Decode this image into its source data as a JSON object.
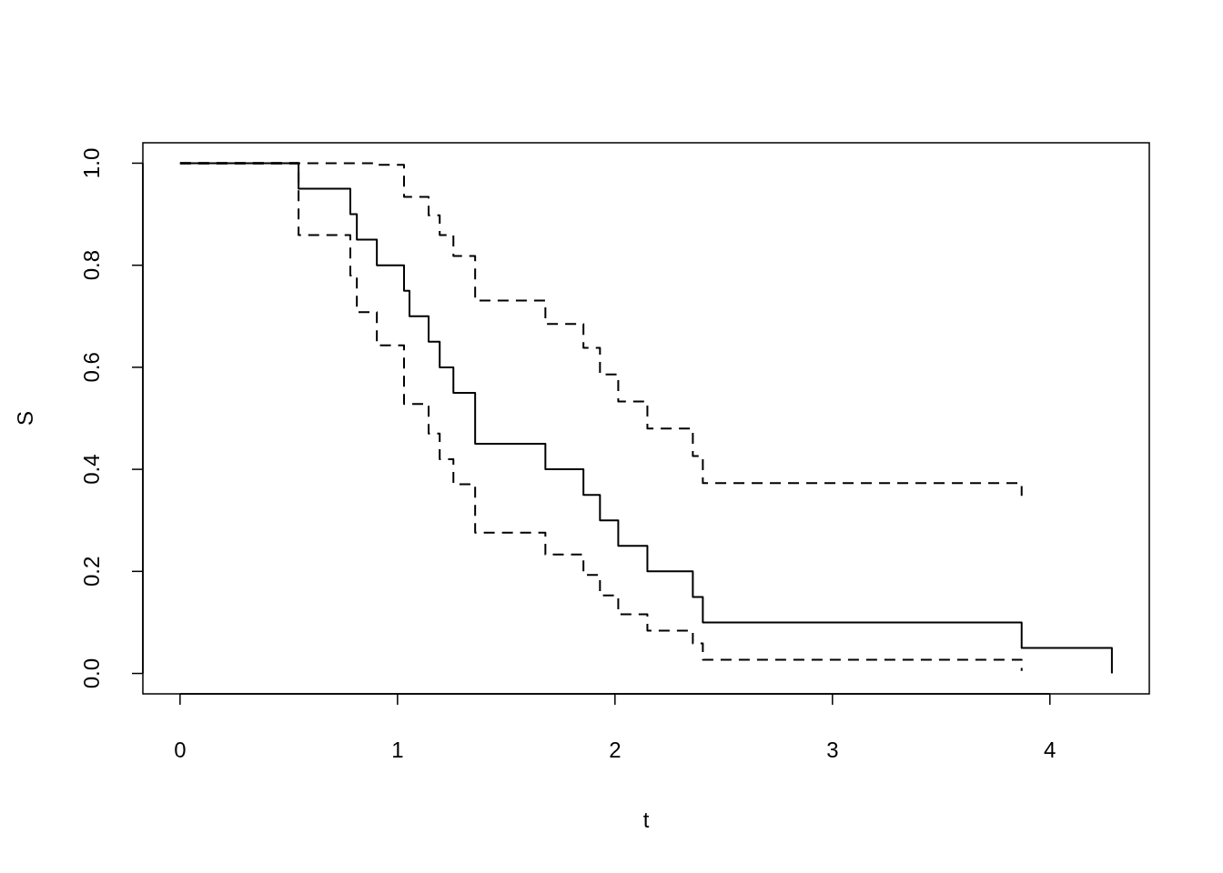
{
  "chart_data": {
    "type": "step",
    "xlabel": "t",
    "ylabel": "S",
    "xlim": [
      -0.171,
      4.457
    ],
    "ylim": [
      -0.04,
      1.04
    ],
    "xticks": [
      0,
      1,
      2,
      3,
      4
    ],
    "yticks": [
      {
        "value": 0,
        "label": "0.0"
      },
      {
        "value": 0.2,
        "label": "0.2"
      },
      {
        "value": 0.4,
        "label": "0.4"
      },
      {
        "value": 0.6,
        "label": "0.6"
      },
      {
        "value": 0.8,
        "label": "0.8"
      },
      {
        "value": 1,
        "label": "1.0"
      }
    ],
    "series": [
      {
        "color": "#000000",
        "line_style": "solid",
        "x": [
          0,
          0.545,
          0.783,
          0.813,
          0.905,
          1.03,
          1.055,
          1.143,
          1.194,
          1.257,
          1.357,
          1.68,
          1.855,
          1.931,
          2.015,
          2.149,
          2.358,
          2.404,
          3.87,
          4.285
        ],
        "values": [
          1,
          0.95,
          0.9,
          0.85,
          0.8,
          0.75,
          0.7,
          0.65,
          0.6,
          0.55,
          0.45,
          0.4,
          0.35,
          0.3,
          0.25,
          0.2,
          0.15,
          0.1,
          0.05,
          0
        ]
      },
      {
        "color": "#000000",
        "line_style": "dashed",
        "x": [
          0,
          0.905,
          1.03,
          1.143,
          1.194,
          1.257,
          1.357,
          1.68,
          1.855,
          1.931,
          2.015,
          2.149,
          2.358,
          2.404,
          3.87
        ],
        "values": [
          1,
          0.997,
          0.934,
          0.898,
          0.859,
          0.818,
          0.731,
          0.685,
          0.638,
          0.586,
          0.533,
          0.48,
          0.426,
          0.373,
          0.348
        ]
      },
      {
        "color": "#000000",
        "line_style": "dashed",
        "x": [
          0,
          0.545,
          0.783,
          0.813,
          0.905,
          1.03,
          1.143,
          1.194,
          1.257,
          1.357,
          1.68,
          1.855,
          1.931,
          2.015,
          2.149,
          2.358,
          2.404,
          3.87
        ],
        "values": [
          1,
          0.859,
          0.78,
          0.708,
          0.643,
          0.528,
          0.47,
          0.42,
          0.371,
          0.276,
          0.233,
          0.193,
          0.153,
          0.116,
          0.084,
          0.059,
          0.027,
          0.005
        ]
      }
    ]
  }
}
